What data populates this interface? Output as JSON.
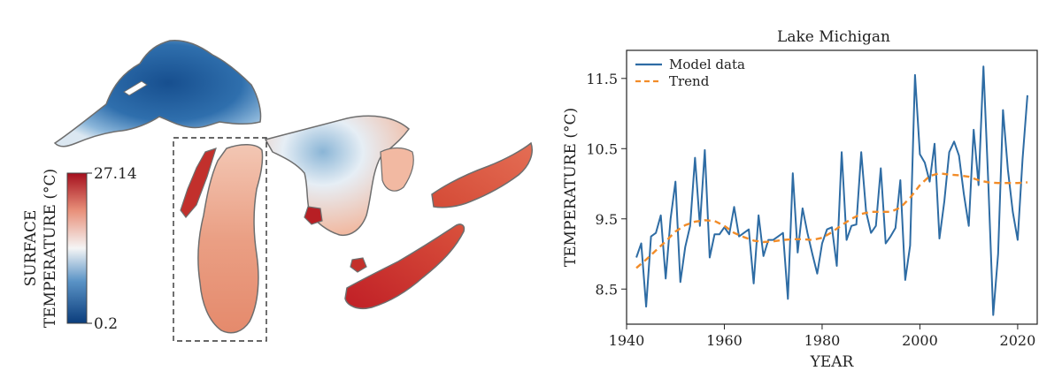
{
  "map": {
    "colorbar": {
      "label_line1": "SURFACE",
      "label_line2": "TEMPERATURE (°C)",
      "max_label": "27.14",
      "min_label": "0.2",
      "colors": [
        "#0b3d7c",
        "#5a93c6",
        "#f5f5f5",
        "#e8907a",
        "#a50f1d"
      ]
    },
    "highlight": "Lake Michigan"
  },
  "chart_data": {
    "type": "line",
    "title": "Lake Michigan",
    "xlabel": "YEAR",
    "ylabel": "TEMPERATURE (°C)",
    "xlim": [
      1940,
      2024
    ],
    "ylim": [
      8.0,
      11.9
    ],
    "xticks": [
      1940,
      1960,
      1980,
      2000,
      2020
    ],
    "yticks": [
      8.5,
      9.5,
      10.5,
      11.5
    ],
    "grid": false,
    "legend_position": "top-left",
    "series": [
      {
        "name": "Model data",
        "color": "#2e6ca4",
        "style": "solid",
        "x": [
          1942,
          1943,
          1944,
          1945,
          1946,
          1947,
          1948,
          1949,
          1950,
          1951,
          1952,
          1953,
          1954,
          1955,
          1956,
          1957,
          1958,
          1959,
          1960,
          1961,
          1962,
          1963,
          1964,
          1965,
          1966,
          1967,
          1968,
          1969,
          1970,
          1971,
          1972,
          1973,
          1974,
          1975,
          1976,
          1977,
          1978,
          1979,
          1980,
          1981,
          1982,
          1983,
          1984,
          1985,
          1986,
          1987,
          1988,
          1989,
          1990,
          1991,
          1992,
          1993,
          1994,
          1995,
          1996,
          1997,
          1998,
          1999,
          2000,
          2001,
          2002,
          2003,
          2004,
          2005,
          2006,
          2007,
          2008,
          2009,
          2010,
          2011,
          2012,
          2013,
          2014,
          2015,
          2016,
          2017,
          2018,
          2019,
          2020,
          2021,
          2022
        ],
        "y": [
          8.95,
          9.15,
          8.25,
          9.25,
          9.3,
          9.55,
          8.65,
          9.5,
          10.03,
          8.6,
          9.1,
          9.4,
          10.37,
          9.4,
          10.48,
          8.95,
          9.28,
          9.28,
          9.38,
          9.28,
          9.67,
          9.25,
          9.3,
          9.35,
          8.58,
          9.55,
          8.97,
          9.2,
          9.2,
          9.25,
          9.3,
          8.36,
          10.15,
          9.02,
          9.65,
          9.3,
          9.0,
          8.72,
          9.15,
          9.35,
          9.38,
          8.83,
          10.45,
          9.2,
          9.4,
          9.42,
          10.45,
          9.6,
          9.3,
          9.4,
          10.22,
          9.15,
          9.25,
          9.37,
          10.05,
          8.63,
          9.12,
          11.55,
          10.42,
          10.3,
          10.03,
          10.57,
          9.22,
          9.75,
          10.45,
          10.6,
          10.4,
          9.85,
          9.4,
          10.77,
          9.98,
          11.67,
          10.0,
          8.13,
          9.0,
          11.05,
          10.2,
          9.6,
          9.2,
          10.35,
          11.26
        ]
      },
      {
        "name": "Trend",
        "color": "#f28c28",
        "style": "dashed",
        "x": [
          1942,
          1944,
          1946,
          1948,
          1950,
          1952,
          1954,
          1956,
          1958,
          1960,
          1962,
          1964,
          1966,
          1968,
          1970,
          1972,
          1974,
          1976,
          1978,
          1980,
          1982,
          1984,
          1986,
          1988,
          1990,
          1992,
          1994,
          1996,
          1998,
          2000,
          2002,
          2004,
          2006,
          2008,
          2010,
          2012,
          2014,
          2016,
          2018,
          2020,
          2022
        ],
        "y": [
          8.8,
          8.92,
          9.05,
          9.18,
          9.32,
          9.41,
          9.46,
          9.48,
          9.47,
          9.4,
          9.3,
          9.24,
          9.19,
          9.17,
          9.18,
          9.2,
          9.21,
          9.21,
          9.2,
          9.23,
          9.31,
          9.41,
          9.5,
          9.57,
          9.6,
          9.6,
          9.6,
          9.66,
          9.8,
          9.98,
          10.11,
          10.15,
          10.13,
          10.12,
          10.1,
          10.05,
          10.02,
          10.01,
          10.01,
          10.01,
          10.02
        ]
      }
    ]
  }
}
